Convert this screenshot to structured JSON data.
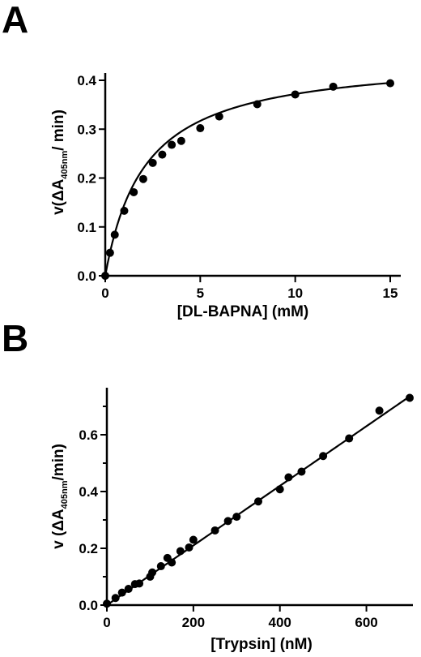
{
  "chart_data": [
    {
      "type": "scatter",
      "panel_label": "A",
      "xlabel": "[DL-BAPNA] (mM)",
      "ylabel": {
        "prefix": "v(ΔA",
        "sub": "405nm",
        "suffix": "/ min)"
      },
      "xlim": [
        0,
        15
      ],
      "ylim": [
        0,
        0.4
      ],
      "x_ticks": [
        0,
        5,
        10,
        15
      ],
      "x_tick_labels": [
        "0",
        "5",
        "10",
        "15"
      ],
      "y_ticks": [
        0,
        0.1,
        0.2,
        0.3,
        0.4
      ],
      "y_tick_labels": [
        "0.0",
        "0.1",
        "0.2",
        "0.3",
        "0.4"
      ],
      "grid": false,
      "fit": {
        "model": "Michaelis-Menten",
        "vmax": 0.45,
        "km": 2.1
      },
      "series": [
        {
          "x": [
            0,
            0.25,
            0.5,
            1,
            1.5,
            2,
            2.5,
            3,
            3.5,
            4,
            5,
            6,
            8,
            10,
            12,
            15
          ],
          "y": [
            0.0,
            0.047,
            0.084,
            0.133,
            0.171,
            0.198,
            0.231,
            0.248,
            0.268,
            0.276,
            0.302,
            0.326,
            0.351,
            0.371,
            0.387,
            0.394
          ]
        }
      ]
    },
    {
      "type": "scatter",
      "panel_label": "B",
      "xlabel": "[Trypsin] (nM)",
      "ylabel": {
        "prefix": "v (ΔA",
        "sub": "405nm",
        "suffix": "/min)"
      },
      "xlim": [
        0,
        700
      ],
      "ylim": [
        0,
        0.76
      ],
      "x_ticks": [
        0,
        200,
        400,
        600
      ],
      "x_tick_labels": [
        "0",
        "200",
        "400",
        "600"
      ],
      "y_ticks": [
        0,
        0.2,
        0.4,
        0.6
      ],
      "y_tick_labels": [
        "0.0",
        "0.2",
        "0.4",
        "0.6"
      ],
      "y_minor_ticks": [
        0.1,
        0.3,
        0.5,
        0.7
      ],
      "grid": false,
      "fit": {
        "model": "linear",
        "slope": 0.00105,
        "intercept": 0.0
      },
      "series": [
        {
          "x": [
            0,
            20,
            35,
            50,
            65,
            75,
            100,
            105,
            125,
            140,
            150,
            170,
            190,
            200,
            250,
            280,
            300,
            350,
            400,
            420,
            450,
            500,
            560,
            630,
            700
          ],
          "y": [
            0.005,
            0.025,
            0.044,
            0.057,
            0.074,
            0.076,
            0.1,
            0.115,
            0.137,
            0.166,
            0.15,
            0.19,
            0.203,
            0.23,
            0.263,
            0.296,
            0.311,
            0.365,
            0.408,
            0.45,
            0.47,
            0.525,
            0.587,
            0.685,
            0.73
          ]
        }
      ]
    }
  ]
}
